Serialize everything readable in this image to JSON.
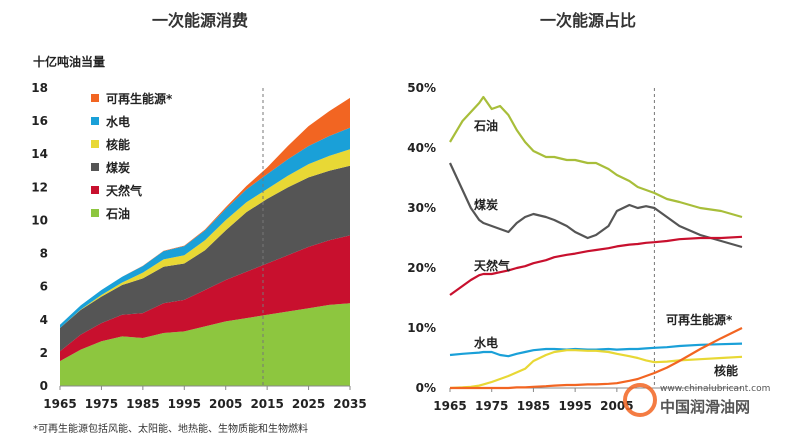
{
  "chart_data": [
    {
      "type": "area",
      "title": "一次能源消费",
      "ylabel": "十亿吨油当量",
      "x": [
        1965,
        1970,
        1975,
        1980,
        1985,
        1990,
        1995,
        2000,
        2005,
        2010,
        2015,
        2020,
        2025,
        2030,
        2035
      ],
      "xticks": [
        1965,
        1975,
        1985,
        1995,
        2005,
        2015,
        2025,
        2035
      ],
      "yticks": [
        0,
        2,
        4,
        6,
        8,
        10,
        12,
        14,
        16,
        18
      ],
      "ylim": [
        0,
        18
      ],
      "xlim": [
        1965,
        2035
      ],
      "forecast_start": 2014,
      "series": [
        {
          "name": "石油",
          "color": "#8dc63f",
          "values": [
            1.5,
            2.2,
            2.7,
            3.0,
            2.9,
            3.2,
            3.3,
            3.6,
            3.9,
            4.1,
            4.3,
            4.5,
            4.7,
            4.9,
            5.0
          ]
        },
        {
          "name": "天然气",
          "color": "#c8102e",
          "values": [
            0.6,
            0.9,
            1.1,
            1.3,
            1.5,
            1.8,
            1.9,
            2.2,
            2.5,
            2.8,
            3.1,
            3.4,
            3.7,
            3.9,
            4.1
          ]
        },
        {
          "name": "煤炭",
          "color": "#555555",
          "values": [
            1.4,
            1.5,
            1.6,
            1.8,
            2.1,
            2.2,
            2.2,
            2.4,
            3.0,
            3.6,
            3.9,
            4.1,
            4.2,
            4.2,
            4.2
          ]
        },
        {
          "name": "核能",
          "color": "#e8d835",
          "values": [
            0.0,
            0.02,
            0.1,
            0.15,
            0.35,
            0.45,
            0.5,
            0.6,
            0.62,
            0.6,
            0.6,
            0.7,
            0.8,
            0.9,
            1.0
          ]
        },
        {
          "name": "水电",
          "color": "#1aa0d8",
          "values": [
            0.2,
            0.25,
            0.3,
            0.35,
            0.4,
            0.5,
            0.55,
            0.6,
            0.68,
            0.78,
            0.9,
            1.0,
            1.1,
            1.2,
            1.3
          ]
        },
        {
          "name": "可再生能源*",
          "color": "#f26522",
          "values": [
            0.0,
            0.0,
            0.0,
            0.0,
            0.01,
            0.02,
            0.03,
            0.05,
            0.1,
            0.2,
            0.4,
            0.8,
            1.2,
            1.5,
            1.8
          ]
        }
      ],
      "footnote": "*可再生能源包括风能、太阳能、地热能、生物质能和生物燃料"
    },
    {
      "type": "line",
      "title": "一次能源占比",
      "x": [
        1965,
        1968,
        1970,
        1972,
        1973,
        1975,
        1977,
        1979,
        1981,
        1983,
        1985,
        1988,
        1990,
        1993,
        1995,
        1998,
        2000,
        2003,
        2005,
        2008,
        2010,
        2012,
        2014,
        2017,
        2020,
        2025,
        2030,
        2035
      ],
      "xticks": [
        1965,
        1975,
        1985,
        1995,
        2005
      ],
      "yticks": [
        0,
        10,
        20,
        30,
        40,
        50
      ],
      "yticklabels": [
        "0%",
        "10%",
        "20%",
        "30%",
        "40%",
        "50%"
      ],
      "ylim": [
        0,
        50
      ],
      "xlim": [
        1965,
        2035
      ],
      "forecast_start": 2014,
      "series": [
        {
          "name": "石油",
          "color": "#a8be3a",
          "values": [
            41,
            44.5,
            46,
            47.5,
            48.5,
            46.5,
            47,
            45.5,
            43,
            41,
            39.5,
            38.5,
            38.5,
            38,
            38,
            37.5,
            37.5,
            36.5,
            35.5,
            34.5,
            33.5,
            33,
            32.5,
            31.5,
            31,
            30,
            29.5,
            28.5
          ]
        },
        {
          "name": "煤炭",
          "color": "#555555",
          "values": [
            37.5,
            33,
            30,
            28,
            27.5,
            27,
            26.5,
            26,
            27.5,
            28.5,
            29,
            28.5,
            28,
            27,
            26,
            25,
            25.5,
            27,
            29.5,
            30.5,
            30,
            30.3,
            30,
            28.5,
            27,
            25.5,
            24.5,
            23.5
          ]
        },
        {
          "name": "天然气",
          "color": "#c8102e",
          "values": [
            15.5,
            17,
            18,
            18.8,
            19,
            19,
            19.3,
            19.6,
            20,
            20.3,
            20.8,
            21.3,
            21.8,
            22.2,
            22.4,
            22.8,
            23,
            23.3,
            23.6,
            23.9,
            24,
            24.2,
            24.3,
            24.5,
            24.8,
            25,
            25,
            25.2
          ]
        },
        {
          "name": "水电",
          "color": "#1aa0d8",
          "values": [
            5.5,
            5.7,
            5.8,
            5.9,
            6.0,
            6.0,
            5.5,
            5.3,
            5.7,
            6.0,
            6.3,
            6.5,
            6.5,
            6.4,
            6.5,
            6.4,
            6.4,
            6.5,
            6.4,
            6.5,
            6.5,
            6.6,
            6.7,
            6.8,
            7.0,
            7.2,
            7.3,
            7.4
          ]
        },
        {
          "name": "核能",
          "color": "#e8d835",
          "values": [
            0.0,
            0.1,
            0.2,
            0.4,
            0.6,
            1.0,
            1.5,
            2.0,
            2.6,
            3.2,
            4.5,
            5.5,
            6.0,
            6.3,
            6.3,
            6.2,
            6.2,
            6.0,
            5.7,
            5.3,
            5.0,
            4.6,
            4.3,
            4.4,
            4.6,
            4.8,
            5.0,
            5.2
          ]
        },
        {
          "name": "可再生能源*",
          "color": "#f26522",
          "values": [
            0.0,
            0.0,
            0.0,
            0.0,
            0.0,
            0.0,
            0.0,
            0.0,
            0.1,
            0.1,
            0.2,
            0.3,
            0.4,
            0.5,
            0.5,
            0.6,
            0.6,
            0.7,
            0.8,
            1.2,
            1.5,
            2.0,
            2.5,
            3.4,
            4.5,
            6.5,
            8.3,
            10.0
          ]
        }
      ]
    }
  ],
  "watermark": {
    "url": "www.chinalubricant.com",
    "name": "中国润滑油网"
  }
}
